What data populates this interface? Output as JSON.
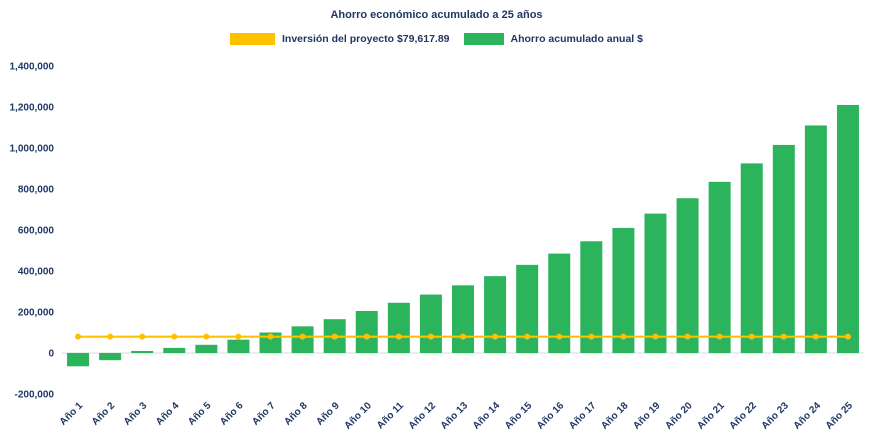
{
  "chart_data": {
    "type": "bar",
    "title": "Ahorro económico acumulado a 25 años",
    "xlabel": "",
    "ylabel": "",
    "ylim": [
      -200000,
      1400000
    ],
    "ytick_step": 200000,
    "yticks": [
      1400000,
      1200000,
      1000000,
      800000,
      600000,
      400000,
      200000,
      0,
      -200000
    ],
    "grid": false,
    "legend_position": "top",
    "axis_label_color": "#203864",
    "categories": [
      "Año 1",
      "Año 2",
      "Año 3",
      "Año 4",
      "Año 5",
      "Año 6",
      "Año 7",
      "Año 8",
      "Año 9",
      "Año 10",
      "Año 11",
      "Año 12",
      "Año 13",
      "Año 14",
      "Año 15",
      "Año 16",
      "Año 17",
      "Año 18",
      "Año 19",
      "Año 20",
      "Año 21",
      "Año 22",
      "Año 23",
      "Año 24",
      "Año 25"
    ],
    "series": [
      {
        "name": "Inversión del proyecto $79,617.89",
        "type": "line",
        "color": "#FFC000",
        "constant_value": 79617.89,
        "values": [
          79617.89,
          79617.89,
          79617.89,
          79617.89,
          79617.89,
          79617.89,
          79617.89,
          79617.89,
          79617.89,
          79617.89,
          79617.89,
          79617.89,
          79617.89,
          79617.89,
          79617.89,
          79617.89,
          79617.89,
          79617.89,
          79617.89,
          79617.89,
          79617.89,
          79617.89,
          79617.89,
          79617.89,
          79617.89
        ]
      },
      {
        "name": "Ahorro acumulado anual $",
        "type": "bar",
        "color": "#2CB45D",
        "values": [
          -65000,
          -35000,
          10000,
          25000,
          40000,
          65000,
          100000,
          130000,
          165000,
          205000,
          245000,
          285000,
          330000,
          375000,
          430000,
          485000,
          545000,
          610000,
          680000,
          755000,
          835000,
          925000,
          1015000,
          1110000,
          1210000
        ]
      }
    ]
  }
}
